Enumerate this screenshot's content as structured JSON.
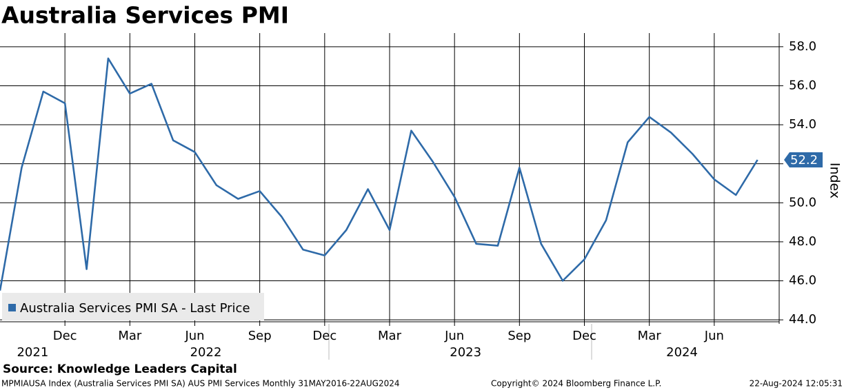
{
  "chart_data": {
    "type": "line",
    "title": "Australia Services PMI",
    "y_label": "Index",
    "source": "Source: Knowledge Leaders Capital",
    "footer_left": "MPMIAUSA Index (Australia Services PMI SA) AUS PMI Services  Monthly 31MAY2016-22AUG2024",
    "footer_center": "Copyright© 2024 Bloomberg Finance L.P.",
    "footer_right": "22-Aug-2024 12:05:31",
    "x": [
      "2021-09",
      "2021-10",
      "2021-11",
      "2021-12",
      "2022-01",
      "2022-02",
      "2022-03",
      "2022-04",
      "2022-05",
      "2022-06",
      "2022-07",
      "2022-08",
      "2022-09",
      "2022-10",
      "2022-11",
      "2022-12",
      "2023-01",
      "2023-02",
      "2023-03",
      "2023-04",
      "2023-05",
      "2023-06",
      "2023-07",
      "2023-08",
      "2023-09",
      "2023-10",
      "2023-11",
      "2023-12",
      "2024-01",
      "2024-02",
      "2024-03",
      "2024-04",
      "2024-05",
      "2024-06",
      "2024-07",
      "2024-08"
    ],
    "series": [
      {
        "name": "Australia Services PMI SA - Last Price",
        "color": "#2e6aa8",
        "values": [
          45.5,
          51.8,
          55.7,
          55.1,
          46.6,
          57.4,
          55.6,
          56.1,
          53.2,
          52.6,
          50.9,
          50.2,
          50.6,
          49.3,
          47.6,
          47.3,
          48.6,
          50.7,
          48.6,
          53.7,
          52.1,
          50.3,
          47.9,
          47.8,
          51.8,
          47.9,
          46.0,
          47.1,
          49.1,
          53.1,
          54.4,
          53.6,
          52.5,
          51.2,
          50.4,
          52.2
        ],
        "last_label": "52.2"
      }
    ],
    "xlim": [
      "2021-09",
      "2024-09"
    ],
    "xticks": [
      {
        "value": "2021-12",
        "label": "Dec"
      },
      {
        "value": "2022-03",
        "label": "Mar"
      },
      {
        "value": "2022-06",
        "label": "Jun"
      },
      {
        "value": "2022-09",
        "label": "Sep"
      },
      {
        "value": "2022-12",
        "label": "Dec"
      },
      {
        "value": "2023-03",
        "label": "Mar"
      },
      {
        "value": "2023-06",
        "label": "Jun"
      },
      {
        "value": "2023-09",
        "label": "Sep"
      },
      {
        "value": "2023-12",
        "label": "Dec"
      },
      {
        "value": "2024-03",
        "label": "Mar"
      },
      {
        "value": "2024-06",
        "label": "Jun"
      }
    ],
    "year_ticks": [
      {
        "value": "2021-10",
        "label": "2021"
      },
      {
        "value": "2022-06",
        "label": "2022"
      },
      {
        "value": "2023-06",
        "label": "2023"
      },
      {
        "value": "2024-04",
        "label": "2024"
      }
    ],
    "ylim": [
      43.9,
      58.7
    ],
    "yticks": [
      {
        "value": 44,
        "label": "44.0"
      },
      {
        "value": 46,
        "label": "46.0"
      },
      {
        "value": 48,
        "label": "48.0"
      },
      {
        "value": 50,
        "label": "50.0"
      },
      {
        "value": 52,
        "label": "52.0"
      },
      {
        "value": 54,
        "label": "54.0"
      },
      {
        "value": 56,
        "label": "56.0"
      },
      {
        "value": 58,
        "label": "58.0"
      }
    ],
    "grid": true
  }
}
